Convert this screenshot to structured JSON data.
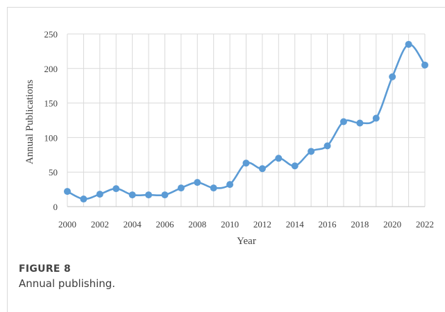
{
  "figure": {
    "label": "FIGURE 8",
    "caption": "Annual publishing."
  },
  "colors": {
    "series": "#5b9bd5",
    "grid": "#d9d9d9",
    "axis_text": "#404040"
  },
  "chart_data": {
    "type": "line",
    "title": "",
    "xlabel": "Year",
    "ylabel": "Annual Publications",
    "xlim": [
      2000,
      2022
    ],
    "ylim": [
      0,
      250
    ],
    "x_ticks": [
      "2000",
      "2002",
      "2004",
      "2006",
      "2008",
      "2010",
      "2012",
      "2014",
      "2016",
      "2018",
      "2020",
      "2022"
    ],
    "y_ticks": [
      "0",
      "50",
      "100",
      "150",
      "200",
      "250"
    ],
    "grid": true,
    "smooth": true,
    "markers": true,
    "x": [
      2000,
      2001,
      2002,
      2003,
      2004,
      2005,
      2006,
      2007,
      2008,
      2009,
      2010,
      2011,
      2012,
      2013,
      2014,
      2015,
      2016,
      2017,
      2018,
      2019,
      2020,
      2021,
      2022
    ],
    "values": [
      22,
      11,
      18,
      26,
      17,
      17,
      17,
      27,
      35,
      27,
      32,
      63,
      55,
      70,
      59,
      80,
      88,
      123,
      121,
      128,
      188,
      235,
      205
    ]
  }
}
